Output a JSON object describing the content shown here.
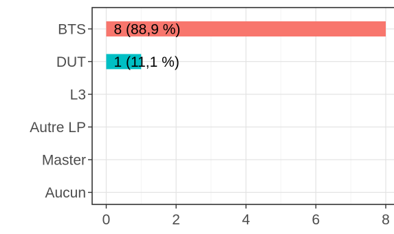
{
  "chart_data": {
    "type": "bar",
    "orientation": "horizontal",
    "categories": [
      "BTS",
      "DUT",
      "L3",
      "Autre LP",
      "Master",
      "Aucun"
    ],
    "values": [
      8,
      1,
      0,
      0,
      0,
      0
    ],
    "data_labels": [
      "8 (88,9 %)",
      "1 (11,1 %)",
      "",
      "",
      "",
      ""
    ],
    "bar_colors": [
      "#F8766D",
      "#00BFC4",
      "#F8766D",
      "#F8766D",
      "#F8766D",
      "#F8766D"
    ],
    "x_ticks": [
      0,
      2,
      4,
      6,
      8
    ],
    "x_tick_labels": [
      "0",
      "2",
      "4",
      "6",
      "8"
    ],
    "xlim": [
      0,
      8
    ],
    "grid": true,
    "legend": "none",
    "title": "",
    "xlabel": "",
    "ylabel": ""
  }
}
